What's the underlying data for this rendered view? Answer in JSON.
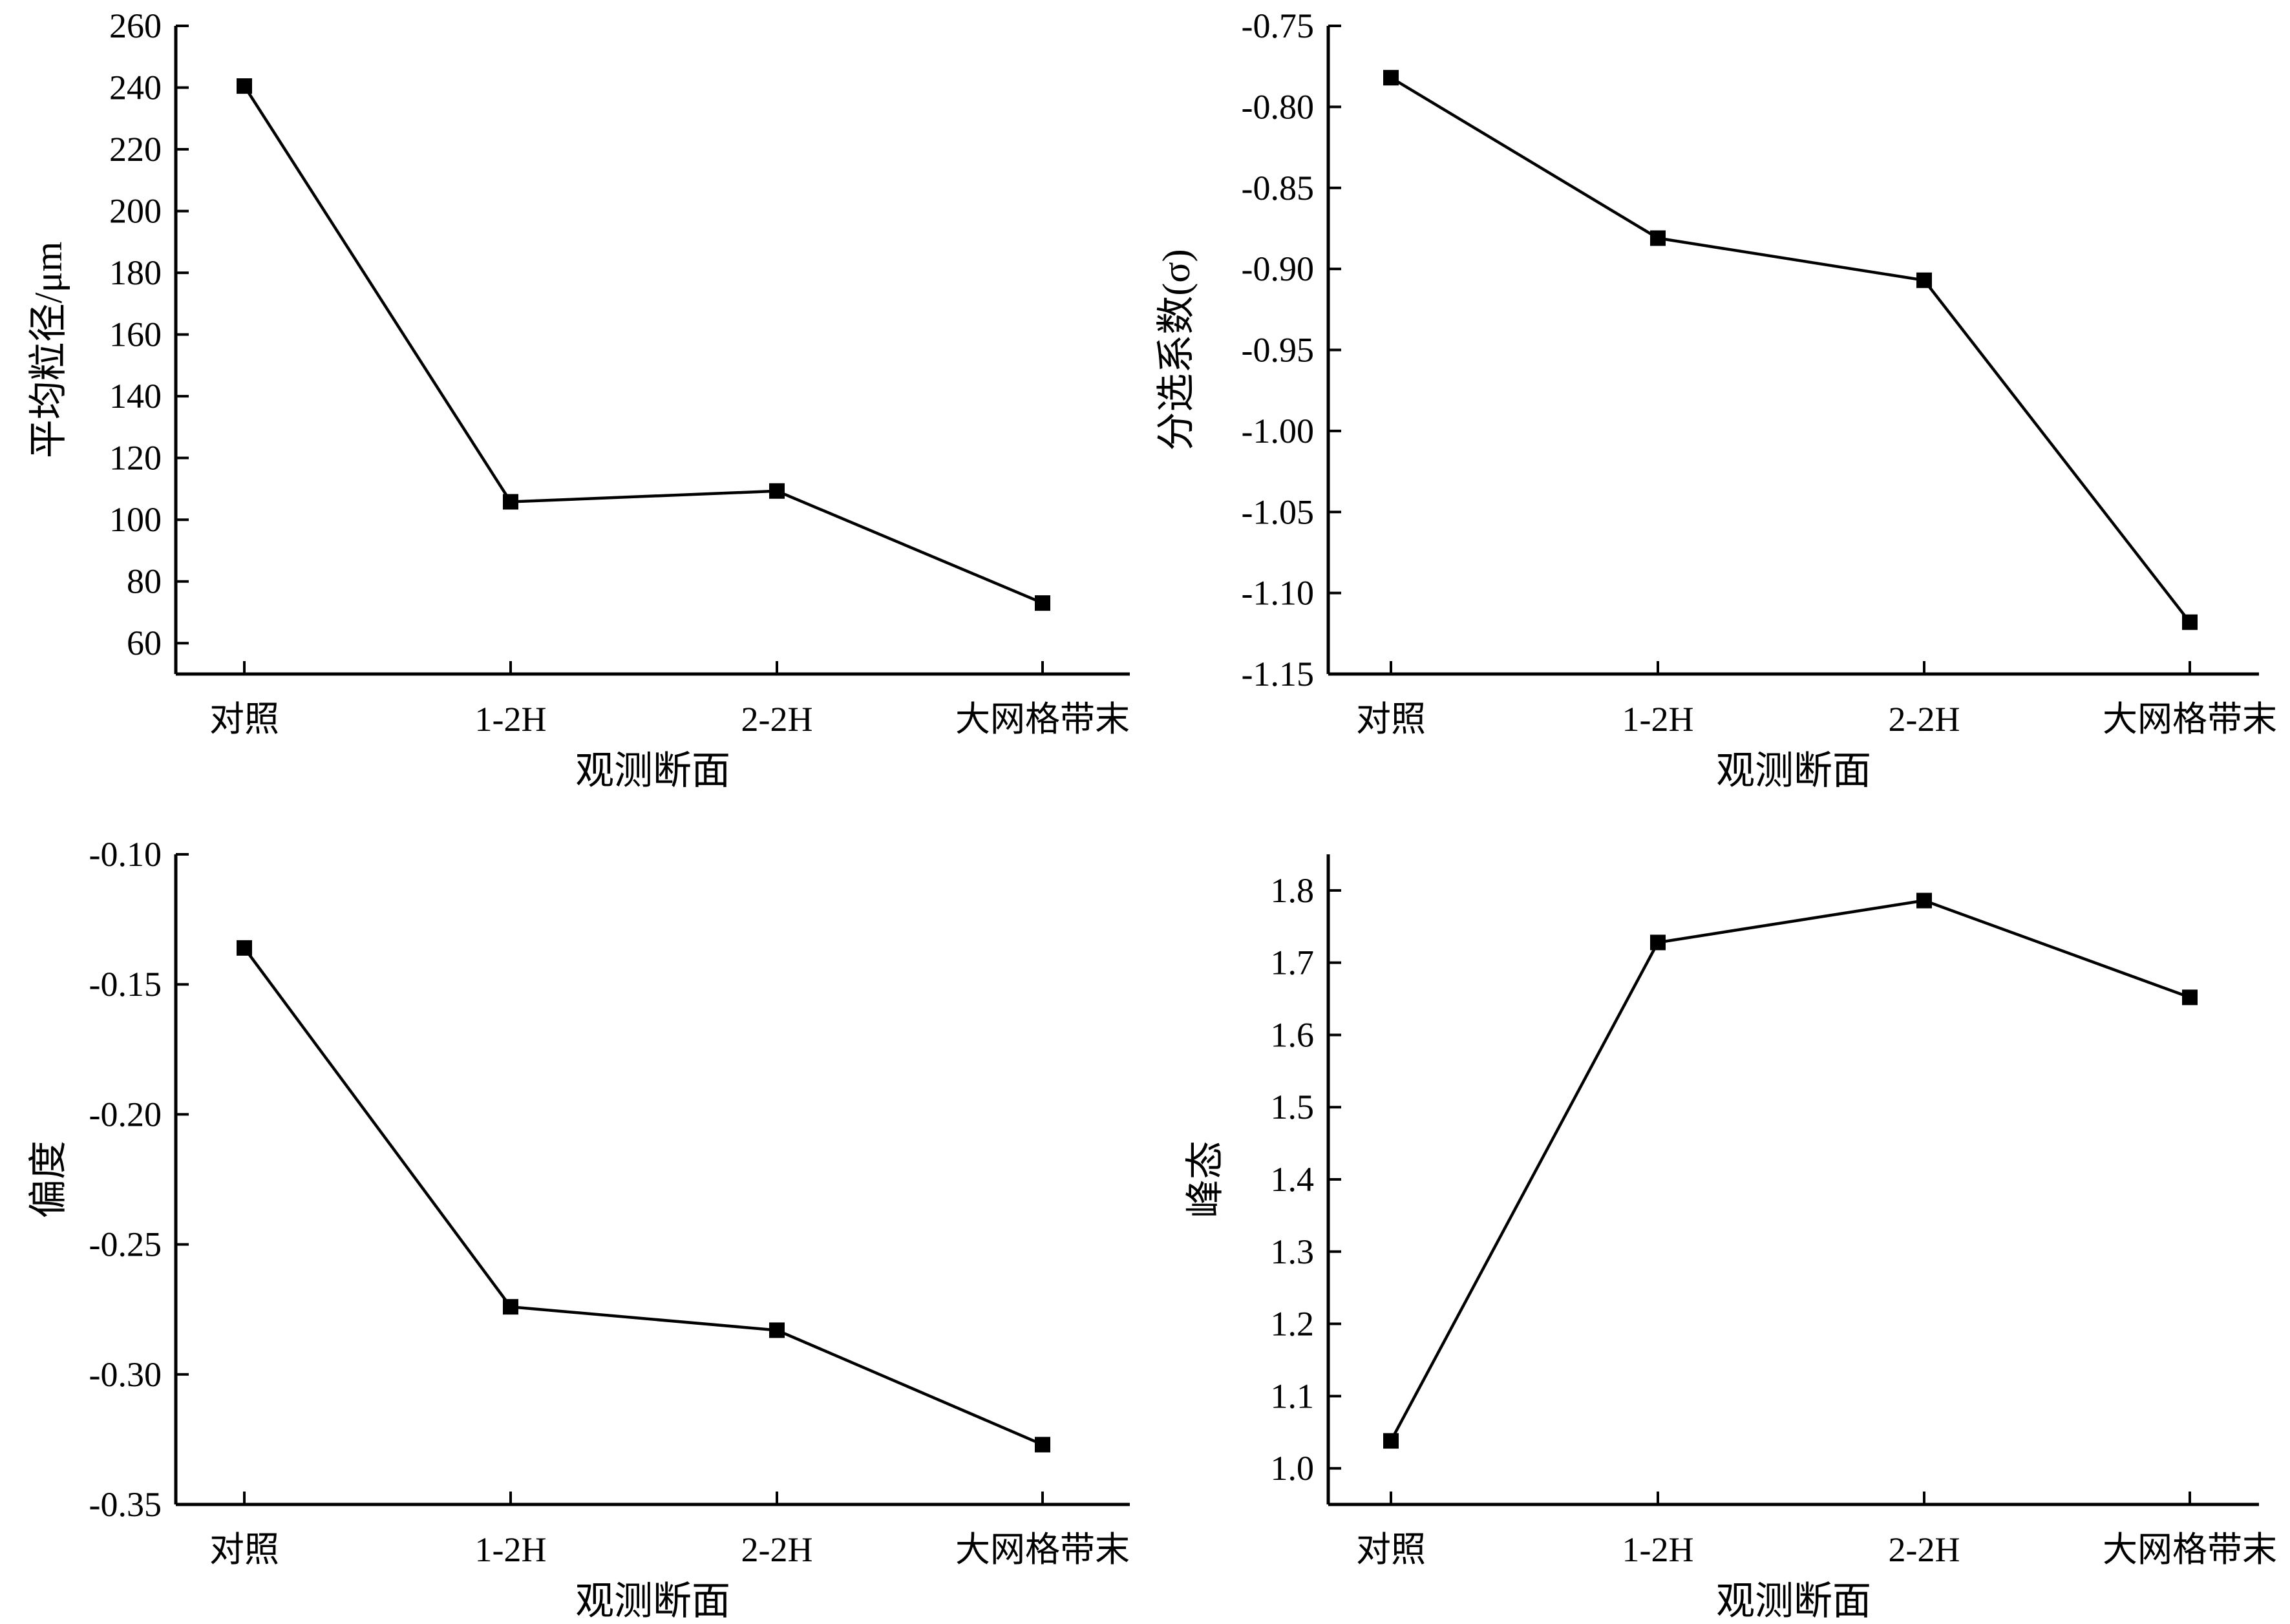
{
  "chart_data": [
    {
      "type": "line",
      "categories": [
        "对照",
        "1-2H",
        "2-2H",
        "大网格带末"
      ],
      "series": [
        {
          "values": [
            240.5,
            105.8,
            109.3,
            73.0
          ]
        }
      ],
      "xlabel": "观测断面",
      "ylabel": "平均粒径/μm",
      "ylim": [
        50,
        260
      ],
      "yticks": [
        "60",
        "80",
        "100",
        "120",
        "140",
        "160",
        "180",
        "200",
        "220",
        "240",
        "260"
      ],
      "marker": "square",
      "grid": false,
      "legend": "none",
      "line_color": "#000000"
    },
    {
      "type": "line",
      "categories": [
        "对照",
        "1-2H",
        "2-2H",
        "大网格带末"
      ],
      "series": [
        {
          "values": [
            -0.782,
            -0.881,
            -0.907,
            -1.118
          ]
        }
      ],
      "xlabel": "观测断面",
      "ylabel": "分选系数(σ)",
      "ylim": [
        -1.15,
        -0.75
      ],
      "yticks": [
        "-1.15",
        "-1.10",
        "-1.05",
        "-1.00",
        "-0.95",
        "-0.90",
        "-0.85",
        "-0.80",
        "-0.75"
      ],
      "marker": "square",
      "grid": false,
      "legend": "none",
      "line_color": "#000000"
    },
    {
      "type": "line",
      "categories": [
        "对照",
        "1-2H",
        "2-2H",
        "大网格带末"
      ],
      "series": [
        {
          "values": [
            -0.136,
            -0.274,
            -0.283,
            -0.327
          ]
        }
      ],
      "xlabel": "观测断面",
      "ylabel": "偏度",
      "ylim": [
        -0.35,
        -0.1
      ],
      "yticks": [
        "-0.35",
        "-0.30",
        "-0.25",
        "-0.20",
        "-0.15",
        "-0.10"
      ],
      "marker": "square",
      "grid": false,
      "legend": "none",
      "line_color": "#000000"
    },
    {
      "type": "line",
      "categories": [
        "对照",
        "1-2H",
        "2-2H",
        "大网格带末"
      ],
      "series": [
        {
          "values": [
            1.038,
            1.728,
            1.786,
            1.652
          ]
        }
      ],
      "xlabel": "观测断面",
      "ylabel": "峰态",
      "ylim": [
        0.95,
        1.85
      ],
      "yticks": [
        "1.0",
        "1.1",
        "1.2",
        "1.3",
        "1.4",
        "1.5",
        "1.6",
        "1.7",
        "1.8"
      ],
      "marker": "square",
      "grid": false,
      "legend": "none",
      "line_color": "#000000"
    }
  ]
}
